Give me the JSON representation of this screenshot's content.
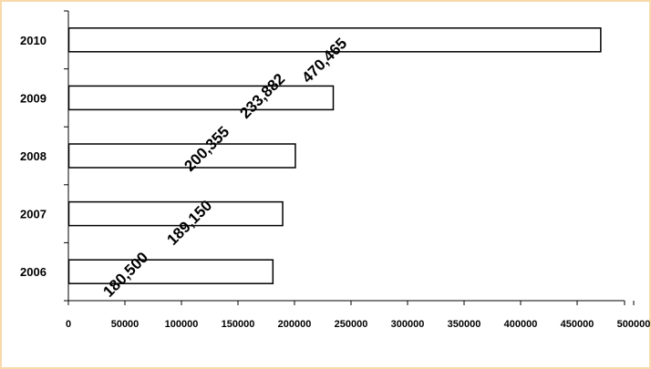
{
  "chart_data": {
    "type": "bar",
    "orientation": "horizontal",
    "categories": [
      "2006",
      "2007",
      "2008",
      "2009",
      "2010"
    ],
    "values": [
      180500,
      189150,
      200355,
      233882,
      470465
    ],
    "data_labels": [
      "180,500",
      "189,150",
      "200,355",
      "233,882",
      "470,465"
    ],
    "x_ticks": [
      "0",
      "50000",
      "100000",
      "150000",
      "200000",
      "250000",
      "300000",
      "350000",
      "400000",
      "450000",
      "500000"
    ],
    "xlim": [
      0,
      500000
    ],
    "title": "",
    "xlabel": "",
    "ylabel": "",
    "grid": false,
    "legend": "none",
    "colors": {
      "bar_fill": "#ffffff",
      "bar_stroke": "#000000",
      "frame_border": "#f7d9ab"
    }
  }
}
